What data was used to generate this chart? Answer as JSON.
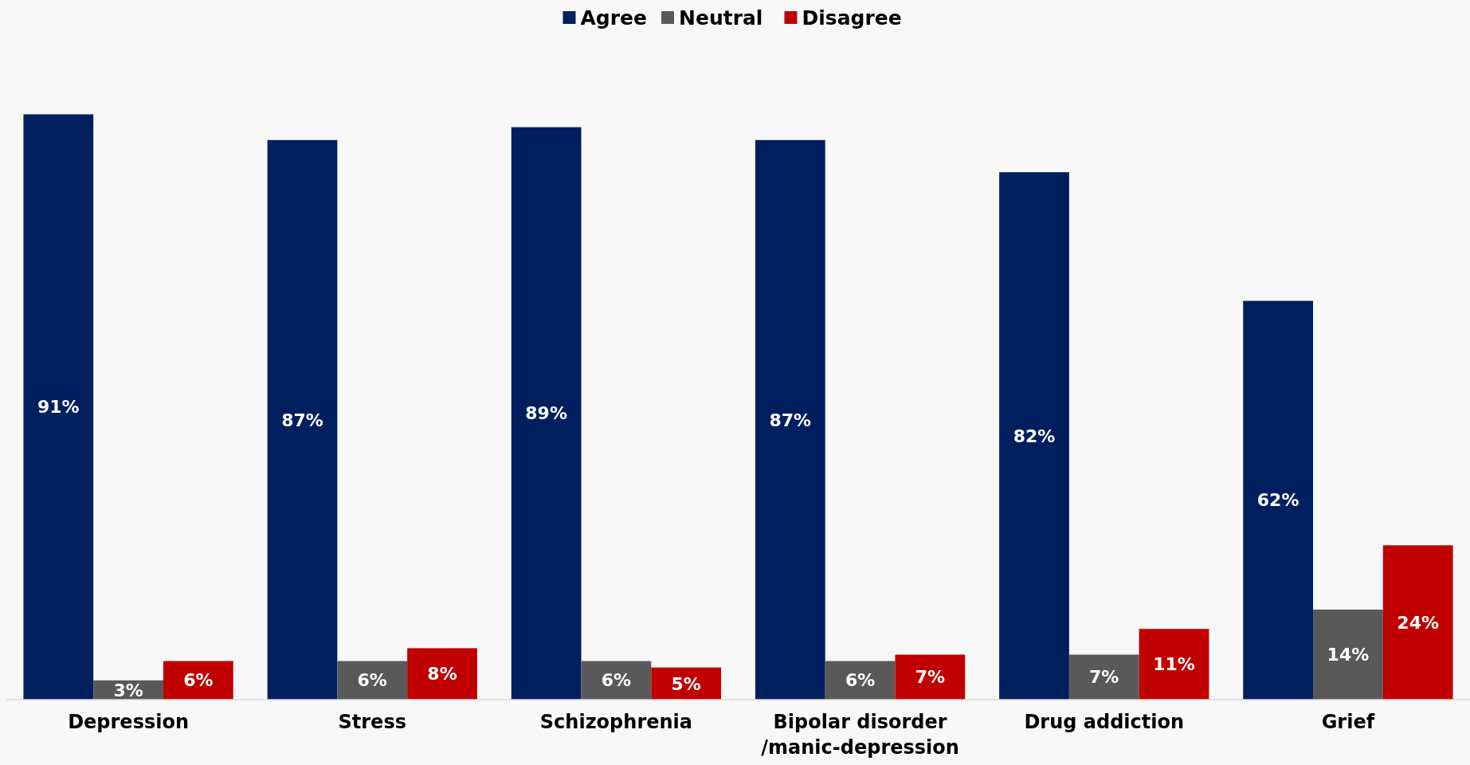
{
  "chart_data": {
    "type": "bar",
    "categories": [
      "Depression",
      "Stress",
      "Schizophrenia",
      "Bipolar disorder /manic-depression",
      "Drug addiction",
      "Grief"
    ],
    "series": [
      {
        "name": "Agree",
        "color": "#001f5f",
        "values": [
          91,
          87,
          89,
          87,
          82,
          62
        ],
        "value_labels": [
          "91%",
          "87%",
          "89%",
          "87%",
          "82%",
          "62%"
        ]
      },
      {
        "name": "Neutral",
        "color": "#595959",
        "values": [
          3,
          6,
          6,
          6,
          7,
          14
        ],
        "value_labels": [
          "3%",
          "6%",
          "6%",
          "6%",
          "7%",
          "14%"
        ]
      },
      {
        "name": "Disagree",
        "color": "#c00000",
        "values": [
          6,
          8,
          5,
          7,
          11,
          24
        ],
        "value_labels": [
          "6%",
          "8%",
          "5%",
          "7%",
          "11%",
          "24%"
        ]
      }
    ],
    "legend": "top"
  }
}
